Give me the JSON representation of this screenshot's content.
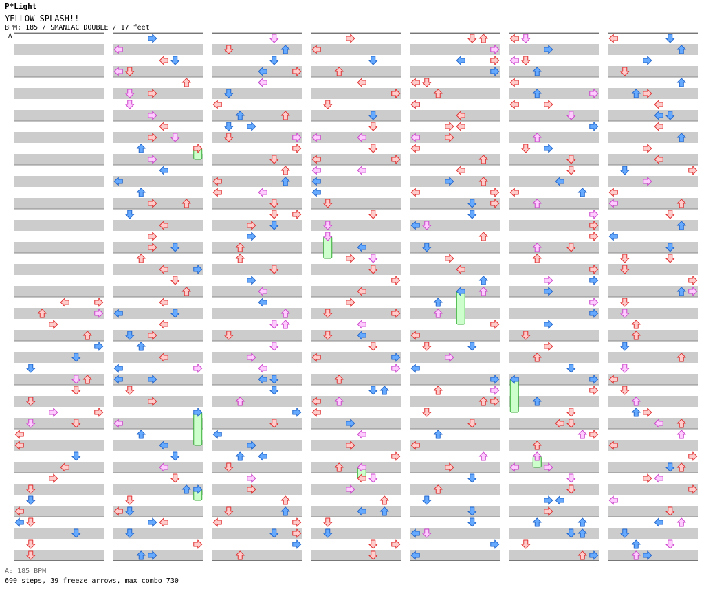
{
  "header": {
    "brand": "P*Light",
    "song_title": "YELLOW SPLASH!!",
    "info_line": "BPM: 185 / SMANIAC DOUBLE / 17 feet"
  },
  "chart": {
    "section_marker": "A",
    "columns": 7,
    "measures_per_column": 12,
    "lanes": 8,
    "lane_order": [
      "left",
      "down",
      "up",
      "right",
      "left",
      "down",
      "up",
      "right"
    ],
    "colors": {
      "stripe_dark": "#cccccc",
      "stripe_light": "#ffffff",
      "measure_line": "#888888",
      "red_arrow_fill": "#ffcccc",
      "red_arrow_stroke": "#e03030",
      "blue_arrow_fill": "#66aaff",
      "blue_arrow_stroke": "#2266cc",
      "pink_arrow_fill": "#ffccff",
      "pink_arrow_stroke": "#cc44cc",
      "freeze_fill": "#ccffcc",
      "freeze_stroke": "#33aa33"
    }
  },
  "footer": {
    "bpm_line": "A: 185 BPM",
    "stats_line": "690 steps, 39 freeze arrows, max combo 730"
  }
}
